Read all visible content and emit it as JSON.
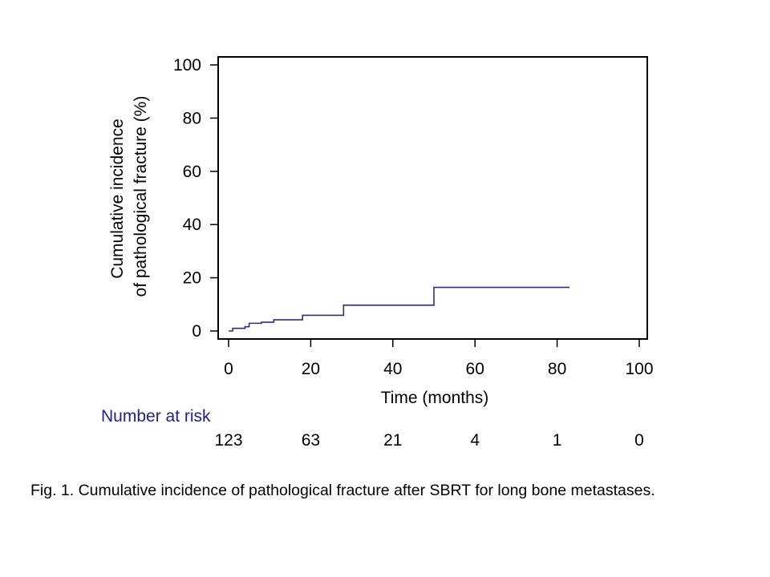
{
  "chart_data": {
    "type": "line",
    "step": true,
    "xlabel": "Time (months)",
    "ylabel_lines": [
      "Cumulative incidence",
      "of pathological fracture (%)"
    ],
    "xlim": [
      0,
      100
    ],
    "ylim": [
      0,
      100
    ],
    "x_ticks": [
      0,
      20,
      40,
      60,
      80,
      100
    ],
    "y_ticks": [
      0,
      20,
      40,
      60,
      80,
      100
    ],
    "grid": false,
    "line_color": "#2e2e7e",
    "series": [
      {
        "x": [
          0,
          1,
          4,
          5,
          8,
          11,
          18,
          28,
          50,
          83
        ],
        "y": [
          0,
          1,
          1.6,
          2.9,
          3.3,
          4.2,
          5.9,
          9.7,
          16.4,
          16.4
        ]
      }
    ],
    "risk_table": {
      "title": "Number at risk",
      "title_color": "#1f1f87",
      "times": [
        0,
        20,
        40,
        60,
        80,
        100
      ],
      "counts": [
        "123",
        "63",
        "21",
        "4",
        "1",
        "0"
      ]
    }
  },
  "caption": "Fig. 1. Cumulative incidence of pathological fracture after SBRT for long bone metastases."
}
